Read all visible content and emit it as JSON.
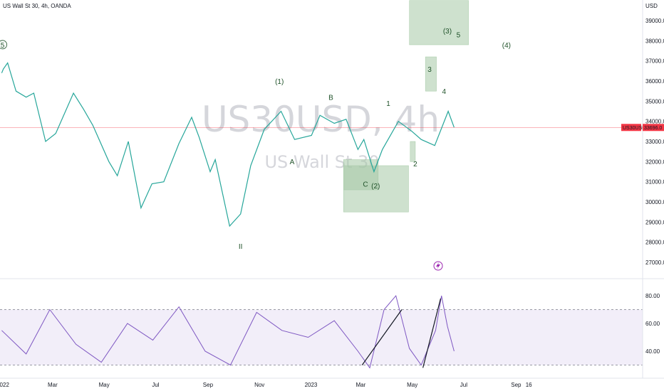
{
  "header": {
    "title": "US Wall St 30, 4h, OANDA"
  },
  "watermark": {
    "symbol": "US30USD, 4h",
    "name": "US Wall St 30"
  },
  "price_axis": {
    "currency": "USD",
    "ticks": [
      "39000.0",
      "38000.0",
      "37000.0",
      "36000.0",
      "35000.0",
      "34000.0",
      "33000.0",
      "32000.0",
      "31000.0",
      "30000.0",
      "29000.0",
      "28000.0",
      "27000.0"
    ],
    "last_symbol": "US30USD",
    "last_price": "33696.0"
  },
  "rsi_axis": {
    "ticks": [
      "80.00",
      "60.00",
      "40.00"
    ]
  },
  "time_axis": {
    "ticks": [
      "2022",
      "Mar",
      "May",
      "Jul",
      "Sep",
      "Nov",
      "2023",
      "Mar",
      "May",
      "Jul",
      "Sep",
      "16"
    ]
  },
  "colors": {
    "up": "#26a69a",
    "down": "#ef5350",
    "rsi": "#7e57c2",
    "box": "#a5c9a6",
    "wave_text": "#1e5128",
    "last_price": "#f23645"
  },
  "chart_data": [
    {
      "type": "line",
      "title": "US Wall St 30, 4h, OANDA",
      "xlabel": "",
      "ylabel": "USD",
      "x": [
        "2022-01-03",
        "2022-01-05",
        "2022-01-10",
        "2022-01-20",
        "2022-02-01",
        "2022-02-10",
        "2022-02-24",
        "2022-03-08",
        "2022-03-29",
        "2022-04-10",
        "2022-04-21",
        "2022-05-10",
        "2022-05-20",
        "2022-06-02",
        "2022-06-17",
        "2022-06-30",
        "2022-07-14",
        "2022-08-01",
        "2022-08-16",
        "2022-08-25",
        "2022-09-07",
        "2022-09-13",
        "2022-09-30",
        "2022-10-13",
        "2022-10-25",
        "2022-11-10",
        "2022-11-30",
        "2022-12-16",
        "2023-01-05",
        "2023-01-15",
        "2023-02-01",
        "2023-02-15",
        "2023-03-01",
        "2023-03-08",
        "2023-03-20",
        "2023-03-30",
        "2023-04-18",
        "2023-05-04",
        "2023-05-15",
        "2023-05-31",
        "2023-06-16",
        "2023-06-23"
      ],
      "values": [
        36400,
        36600,
        36900,
        35500,
        35200,
        35400,
        33000,
        33400,
        35400,
        34600,
        33800,
        32000,
        31300,
        33000,
        29700,
        30900,
        31000,
        32900,
        34200,
        33200,
        31500,
        32100,
        28800,
        29400,
        31800,
        33600,
        34500,
        33100,
        33300,
        34300,
        33900,
        34100,
        32600,
        33100,
        31500,
        32600,
        34000,
        33500,
        33100,
        32800,
        34500,
        33700
      ],
      "annotations": [
        {
          "label": "5",
          "x": "2022-01-04",
          "y": 37700,
          "circled": true
        },
        {
          "label": "II",
          "x": "2022-10-13",
          "y": 27700
        },
        {
          "label": "(1)",
          "x": "2022-11-28",
          "y": 35900
        },
        {
          "label": "A",
          "x": "2022-12-13",
          "y": 31900
        },
        {
          "label": "B",
          "x": "2023-01-28",
          "y": 35100
        },
        {
          "label": "C",
          "x": "2023-03-10",
          "y": 30800
        },
        {
          "label": "(2)",
          "x": "2023-03-22",
          "y": 30700
        },
        {
          "label": "1",
          "x": "2023-04-06",
          "y": 34800
        },
        {
          "label": "2",
          "x": "2023-05-08",
          "y": 31800
        },
        {
          "label": "3",
          "x": "2023-05-25",
          "y": 36500
        },
        {
          "label": "4",
          "x": "2023-06-11",
          "y": 35400
        },
        {
          "label": "(3)",
          "x": "2023-06-15",
          "y": 38400
        },
        {
          "label": "5",
          "x": "2023-06-28",
          "y": 38200
        },
        {
          "label": "(4)",
          "x": "2023-08-24",
          "y": 37700
        }
      ],
      "zones": [
        {
          "x1": "2023-02-12",
          "x2": "2023-03-25",
          "y1": 30600,
          "y2": 32100
        },
        {
          "x1": "2023-02-12",
          "x2": "2023-04-30",
          "y1": 29500,
          "y2": 31800
        },
        {
          "x1": "2023-05-02",
          "x2": "2023-05-08",
          "y1": 32000,
          "y2": 33000
        },
        {
          "x1": "2023-05-20",
          "x2": "2023-06-02",
          "y1": 35500,
          "y2": 37200
        },
        {
          "x1": "2023-05-01",
          "x2": "2023-07-10",
          "y1": 37800,
          "y2": 40000
        }
      ],
      "ylim": [
        26600,
        40000
      ],
      "grid": false
    },
    {
      "type": "line",
      "title": "",
      "ylabel": "",
      "x": [
        "2022-01-03",
        "2022-02-01",
        "2022-03-01",
        "2022-04-01",
        "2022-05-01",
        "2022-06-01",
        "2022-07-01",
        "2022-08-01",
        "2022-09-01",
        "2022-10-01",
        "2022-11-01",
        "2022-12-01",
        "2023-01-01",
        "2023-02-01",
        "2023-03-01",
        "2023-03-15",
        "2023-04-01",
        "2023-04-15",
        "2023-05-01",
        "2023-05-15",
        "2023-06-01",
        "2023-06-08",
        "2023-06-15",
        "2023-06-23"
      ],
      "values": [
        55,
        38,
        70,
        45,
        32,
        60,
        48,
        72,
        40,
        30,
        68,
        55,
        50,
        62,
        40,
        28,
        70,
        80,
        42,
        30,
        55,
        80,
        58,
        40
      ],
      "bands": [
        30,
        70
      ],
      "trendlines": [
        {
          "x1": "2023-03-06",
          "y1": 30,
          "x2": "2023-04-22",
          "y2": 70
        },
        {
          "x1": "2023-05-17",
          "y1": 28,
          "x2": "2023-06-07",
          "y2": 78
        }
      ],
      "ylim": [
        28,
        82
      ]
    }
  ]
}
